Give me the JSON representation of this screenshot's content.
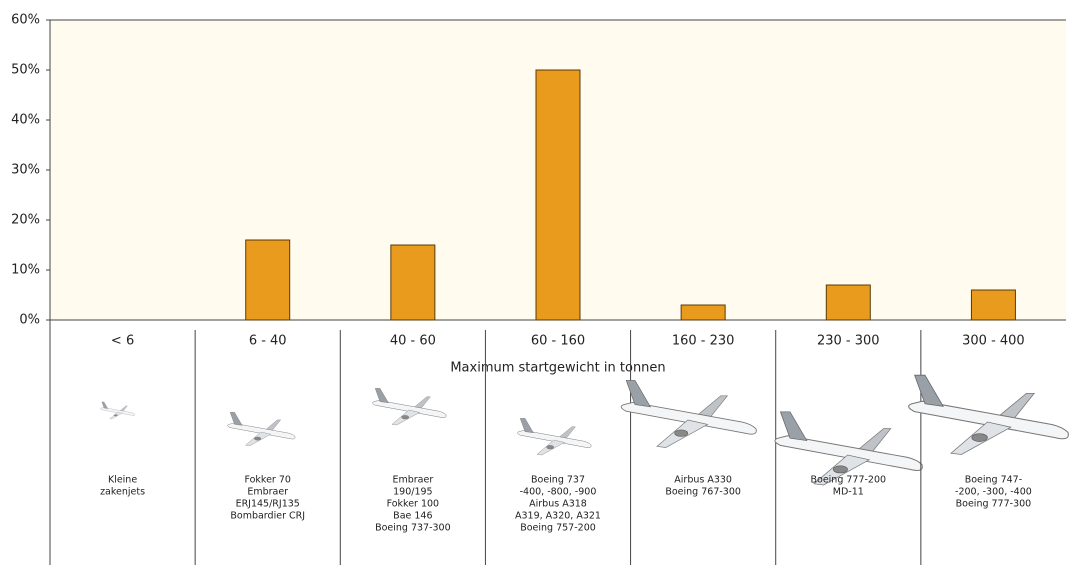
{
  "chart_data": {
    "type": "bar",
    "categories": [
      "< 6",
      "6 - 40",
      "40 - 60",
      "60 - 160",
      "160 - 230",
      "230 - 300",
      "300 - 400"
    ],
    "values": [
      0,
      16,
      15,
      50,
      3,
      7,
      6
    ],
    "color": "#e89b1c",
    "ylim": [
      0,
      60
    ],
    "yticks": [
      {
        "value": 0,
        "label": "0%"
      },
      {
        "value": 10,
        "label": "10%"
      },
      {
        "value": 20,
        "label": "20%"
      },
      {
        "value": 30,
        "label": "30%"
      },
      {
        "value": 40,
        "label": "40%"
      },
      {
        "value": 50,
        "label": "50%"
      },
      {
        "value": 60,
        "label": "60%"
      }
    ],
    "grid": false,
    "x_label": "Maximum startgewicht in tonnen",
    "aircraft_labels": [
      [
        "Kleine",
        "zakenjets"
      ],
      [
        "Fokker 70",
        "Embraer",
        "ERJ145/RJ135",
        "Bombardier CRJ"
      ],
      [
        "Embraer",
        "190/195",
        "Fokker 100",
        "Bae 146",
        "Boeing 737-300"
      ],
      [
        "Boeing 737",
        "-400, -800, -900",
        "Airbus A318",
        "A319, A320, A321",
        "Boeing 757-200"
      ],
      [
        "Airbus A330",
        "Boeing 767-300"
      ],
      [
        "Boeing 777-200",
        "MD-11"
      ],
      [
        "Boeing 747-",
        "-200, -300, -400",
        "Boeing 777-300"
      ]
    ]
  }
}
